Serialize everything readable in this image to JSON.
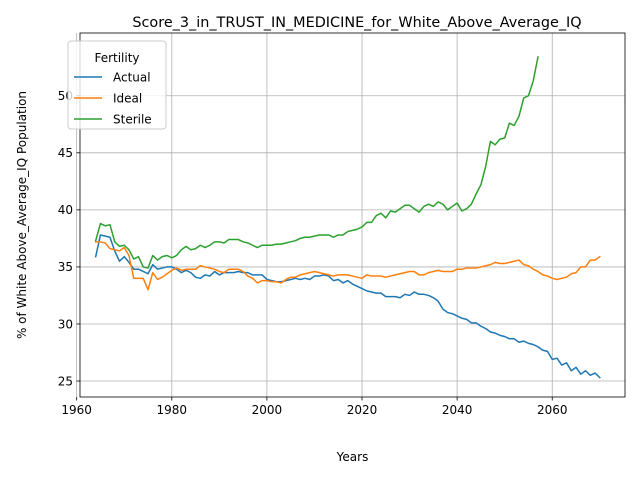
{
  "chart_data": {
    "type": "line",
    "title": "Score_3_in_TRUST_IN_MEDICINE_for_White_Above_Average_IQ",
    "xlabel": "Years",
    "ylabel": "% of White Above_Average_IQ Population",
    "xlim": [
      1960.7,
      2075.3
    ],
    "ylim": [
      23.6,
      55.5
    ],
    "xticks": [
      1960,
      1980,
      2000,
      2020,
      2040,
      2060
    ],
    "yticks": [
      25,
      30,
      35,
      40,
      45,
      50
    ],
    "grid": true,
    "legend": {
      "title": "Fertility",
      "placement": "top-left"
    },
    "colors": {
      "Actual": "#1f77b4",
      "Ideal": "#ff7f0e",
      "Sterile": "#2ca02c"
    },
    "series": [
      {
        "name": "Actual",
        "x": [
          1964,
          1965,
          1966,
          1967,
          1968,
          1969,
          1970,
          1971,
          1972,
          1973,
          1974,
          1975,
          1976,
          1977,
          1978,
          1979,
          1980,
          1981,
          1982,
          1983,
          1984,
          1985,
          1986,
          1987,
          1988,
          1989,
          1990,
          1991,
          1992,
          1993,
          1994,
          1995,
          1996,
          1997,
          1998,
          1999,
          2000,
          2001,
          2002,
          2003,
          2004,
          2005,
          2006,
          2007,
          2008,
          2009,
          2010,
          2011,
          2012,
          2013,
          2014,
          2015,
          2016,
          2017,
          2018,
          2019,
          2020,
          2021,
          2022,
          2023,
          2024,
          2025,
          2026,
          2027,
          2028,
          2029,
          2030,
          2031,
          2032,
          2033,
          2034,
          2035,
          2036,
          2037,
          2038,
          2039,
          2040,
          2041,
          2042,
          2043,
          2044,
          2045,
          2046,
          2047,
          2048,
          2049,
          2050,
          2051,
          2052,
          2053,
          2054,
          2055,
          2056,
          2057,
          2058,
          2059,
          2060,
          2061,
          2062,
          2063,
          2064,
          2065,
          2066,
          2067,
          2068,
          2069,
          2070
        ],
        "y": [
          35.9,
          37.8,
          37.7,
          37.6,
          36.4,
          35.5,
          35.9,
          35.4,
          34.8,
          34.8,
          34.6,
          34.4,
          35.2,
          34.8,
          34.9,
          35.0,
          35.0,
          34.8,
          34.5,
          34.7,
          34.5,
          34.1,
          34.0,
          34.3,
          34.2,
          34.6,
          34.3,
          34.5,
          34.5,
          34.5,
          34.6,
          34.5,
          34.5,
          34.3,
          34.3,
          34.3,
          33.9,
          33.8,
          33.7,
          33.7,
          33.8,
          33.9,
          34.0,
          33.9,
          34.0,
          33.9,
          34.2,
          34.2,
          34.3,
          34.2,
          33.8,
          33.9,
          33.6,
          33.8,
          33.5,
          33.3,
          33.1,
          32.9,
          32.8,
          32.7,
          32.7,
          32.4,
          32.4,
          32.4,
          32.3,
          32.6,
          32.5,
          32.8,
          32.6,
          32.6,
          32.5,
          32.3,
          32.0,
          31.3,
          31.0,
          30.9,
          30.7,
          30.5,
          30.4,
          30.1,
          30.1,
          29.8,
          29.6,
          29.3,
          29.2,
          29.0,
          28.9,
          28.7,
          28.7,
          28.4,
          28.5,
          28.3,
          28.2,
          28.0,
          27.7,
          27.6,
          26.9,
          27.0,
          26.4,
          26.6,
          25.9,
          26.2,
          25.6,
          25.9,
          25.5,
          25.7,
          25.3
        ]
      },
      {
        "name": "Ideal",
        "x": [
          1964,
          1965,
          1966,
          1967,
          1968,
          1969,
          1970,
          1971,
          1972,
          1973,
          1974,
          1975,
          1976,
          1977,
          1978,
          1979,
          1980,
          1981,
          1982,
          1983,
          1984,
          1985,
          1986,
          1987,
          1988,
          1989,
          1990,
          1991,
          1992,
          1993,
          1994,
          1995,
          1996,
          1997,
          1998,
          1999,
          2000,
          2001,
          2002,
          2003,
          2004,
          2005,
          2006,
          2007,
          2008,
          2009,
          2010,
          2011,
          2012,
          2013,
          2014,
          2015,
          2016,
          2017,
          2018,
          2019,
          2020,
          2021,
          2022,
          2023,
          2024,
          2025,
          2026,
          2027,
          2028,
          2029,
          2030,
          2031,
          2032,
          2033,
          2034,
          2035,
          2036,
          2037,
          2038,
          2039,
          2040,
          2041,
          2042,
          2043,
          2044,
          2045,
          2046,
          2047,
          2048,
          2049,
          2050,
          2051,
          2052,
          2053,
          2054,
          2055,
          2056,
          2057,
          2058,
          2059,
          2060,
          2061,
          2062,
          2063,
          2064,
          2065,
          2066,
          2067,
          2068,
          2069,
          2070
        ],
        "y": [
          37.2,
          37.2,
          37.1,
          36.6,
          36.5,
          36.4,
          36.7,
          36.0,
          34.0,
          34.0,
          34.0,
          33.0,
          34.5,
          33.9,
          34.1,
          34.4,
          34.7,
          34.9,
          34.7,
          34.8,
          34.8,
          34.8,
          35.1,
          35.0,
          34.9,
          34.8,
          34.6,
          34.5,
          34.8,
          34.8,
          34.8,
          34.6,
          34.2,
          34.0,
          33.6,
          33.8,
          33.8,
          33.7,
          33.7,
          33.6,
          33.9,
          34.1,
          34.1,
          34.3,
          34.4,
          34.5,
          34.6,
          34.5,
          34.4,
          34.3,
          34.2,
          34.3,
          34.3,
          34.3,
          34.2,
          34.1,
          34.0,
          34.3,
          34.2,
          34.2,
          34.2,
          34.1,
          34.2,
          34.3,
          34.4,
          34.5,
          34.6,
          34.6,
          34.3,
          34.3,
          34.5,
          34.6,
          34.7,
          34.6,
          34.6,
          34.6,
          34.8,
          34.8,
          34.9,
          34.9,
          34.9,
          35.0,
          35.1,
          35.2,
          35.4,
          35.3,
          35.3,
          35.4,
          35.5,
          35.6,
          35.2,
          35.1,
          34.8,
          34.6,
          34.3,
          34.2,
          34.0,
          33.9,
          34.0,
          34.1,
          34.4,
          34.5,
          35.0,
          35.0,
          35.6,
          35.6,
          35.9
        ]
      },
      {
        "name": "Sterile",
        "x": [
          1964,
          1965,
          1966,
          1967,
          1968,
          1969,
          1970,
          1971,
          1972,
          1973,
          1974,
          1975,
          1976,
          1977,
          1978,
          1979,
          1980,
          1981,
          1982,
          1983,
          1984,
          1985,
          1986,
          1987,
          1988,
          1989,
          1990,
          1991,
          1992,
          1993,
          1994,
          1995,
          1996,
          1997,
          1998,
          1999,
          2000,
          2001,
          2002,
          2003,
          2004,
          2005,
          2006,
          2007,
          2008,
          2009,
          2010,
          2011,
          2012,
          2013,
          2014,
          2015,
          2016,
          2017,
          2018,
          2019,
          2020,
          2021,
          2022,
          2023,
          2024,
          2025,
          2026,
          2027,
          2028,
          2029,
          2030,
          2031,
          2032,
          2033,
          2034,
          2035,
          2036,
          2037,
          2038,
          2039,
          2040,
          2041,
          2042,
          2043,
          2044,
          2045,
          2046,
          2047,
          2048,
          2049,
          2050,
          2051,
          2052,
          2053,
          2054,
          2055,
          2056,
          2057
        ],
        "y": [
          37.3,
          38.8,
          38.6,
          38.7,
          37.2,
          36.8,
          36.9,
          36.5,
          35.7,
          35.9,
          35.0,
          34.9,
          36.0,
          35.6,
          35.9,
          36.0,
          35.8,
          36.0,
          36.5,
          36.8,
          36.5,
          36.6,
          36.9,
          36.7,
          36.9,
          37.2,
          37.2,
          37.1,
          37.4,
          37.4,
          37.4,
          37.2,
          37.1,
          36.9,
          36.7,
          36.9,
          36.9,
          36.9,
          37.0,
          37.0,
          37.1,
          37.2,
          37.3,
          37.5,
          37.6,
          37.6,
          37.7,
          37.8,
          37.8,
          37.8,
          37.6,
          37.8,
          37.8,
          38.1,
          38.2,
          38.3,
          38.5,
          38.9,
          38.9,
          39.5,
          39.7,
          39.3,
          39.9,
          39.8,
          40.1,
          40.4,
          40.4,
          40.1,
          39.8,
          40.3,
          40.5,
          40.3,
          40.7,
          40.5,
          40.0,
          40.3,
          40.6,
          39.9,
          40.1,
          40.5,
          41.4,
          42.2,
          43.8,
          46.0,
          45.7,
          46.2,
          46.3,
          47.6,
          47.4,
          48.2,
          49.8,
          50.0,
          51.3,
          53.4
        ]
      }
    ]
  }
}
